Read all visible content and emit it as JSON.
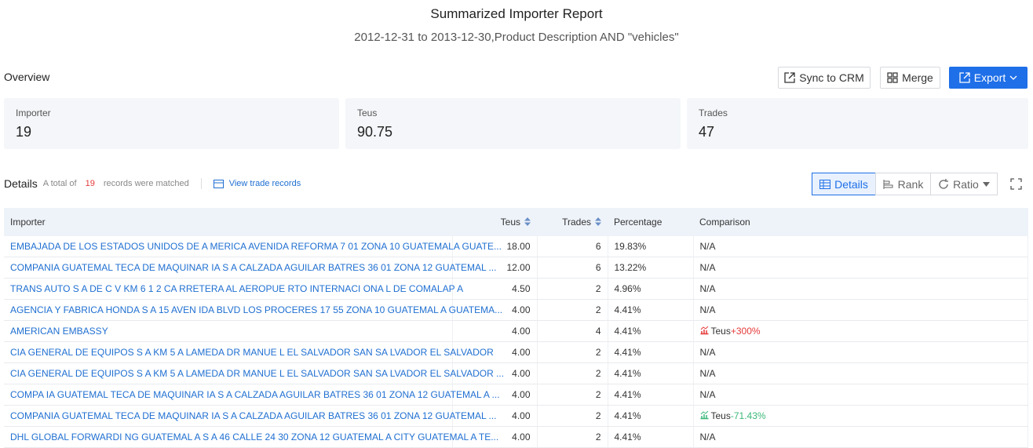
{
  "header": {
    "title": "Summarized Importer Report",
    "subtitle": "2012-12-31 to 2013-12-30,Product Description AND \"vehicles\""
  },
  "overview": {
    "label": "Overview",
    "buttons": [
      "Sync to CRM",
      "Merge",
      "Export"
    ]
  },
  "cards": [
    {
      "label": "Importer",
      "value": "19"
    },
    {
      "label": "Teus",
      "value": "90.75"
    },
    {
      "label": "Trades",
      "value": "47"
    }
  ],
  "details": {
    "label": "Details",
    "total_prefix": "A total of",
    "count": "19",
    "total_suffix": "records were matched",
    "link": "View trade records",
    "views": [
      "Details",
      "Rank",
      "Ratio"
    ]
  },
  "table": {
    "columns": [
      "Importer",
      "Teus",
      "Trades",
      "Percentage",
      "Comparison"
    ],
    "rows": [
      [
        "EMBAJADA DE LOS ESTADOS UNIDOS DE A MERICA AVENIDA REFORMA 7 01 ZONA 10 GUATEMALA GUATE...",
        "18.00",
        "6",
        "19.83%",
        "N/A"
      ],
      [
        "COMPANIA GUATEMAL TECA DE MAQUINAR IA S A CALZADA AGUILAR BATRES 36 01 ZONA 12 GUATEMAL ...",
        "12.00",
        "6",
        "13.22%",
        "N/A"
      ],
      [
        "TRANS AUTO S A DE C V KM 6 1 2 CA RRETERA AL AEROPUE RTO INTERNACI ONA L DE COMALAP A",
        "4.50",
        "2",
        "4.96%",
        "N/A"
      ],
      [
        "AGENCIA Y FABRICA HONDA S A 15 AVEN IDA BLVD LOS PROCERES 17 55 ZONA 10 GUATEMAL A GUATEMA...",
        "4.00",
        "2",
        "4.41%",
        "N/A"
      ],
      [
        "AMERICAN EMBASSY",
        "4.00",
        "4",
        "4.41%",
        {
          "metric": "Teus",
          "change": "+300%"
        }
      ],
      [
        "CIA GENERAL DE EQUIPOS S A KM 5 A LAMEDA DR MANUE L EL SALVADOR SAN SA LVADOR EL SALVADOR",
        "4.00",
        "2",
        "4.41%",
        "N/A"
      ],
      [
        "CIA GENERAL DE EQUIPOS S A KM 5 A LAMEDA DR MANUE L EL SALVADOR SAN SA LVADOR EL SALVADOR ...",
        "4.00",
        "2",
        "4.41%",
        "N/A"
      ],
      [
        "COMPA IA GUATEMAL TECA DE MAQUINAR IA S A CALZADA AGUILAR BATRES 36 01 ZONA 12 GUATEMAL A ...",
        "4.00",
        "2",
        "4.41%",
        "N/A"
      ],
      [
        "COMPANIA GUATEMAL TECA DE MAQUINAR IA S A CALZADA AGUILAR BATRES 36 01 ZONA 12 GUATEMAL ...",
        "4.00",
        "2",
        "4.41%",
        {
          "metric": "Teus",
          "change": "-71.43%"
        }
      ],
      [
        "DHL GLOBAL FORWARDI NG GUATEMAL A S A 46 CALLE 24 30 ZONA 12 GUATEMAL A CITY GUATEMAL A TE...",
        "4.00",
        "2",
        "4.41%",
        "N/A"
      ]
    ]
  }
}
